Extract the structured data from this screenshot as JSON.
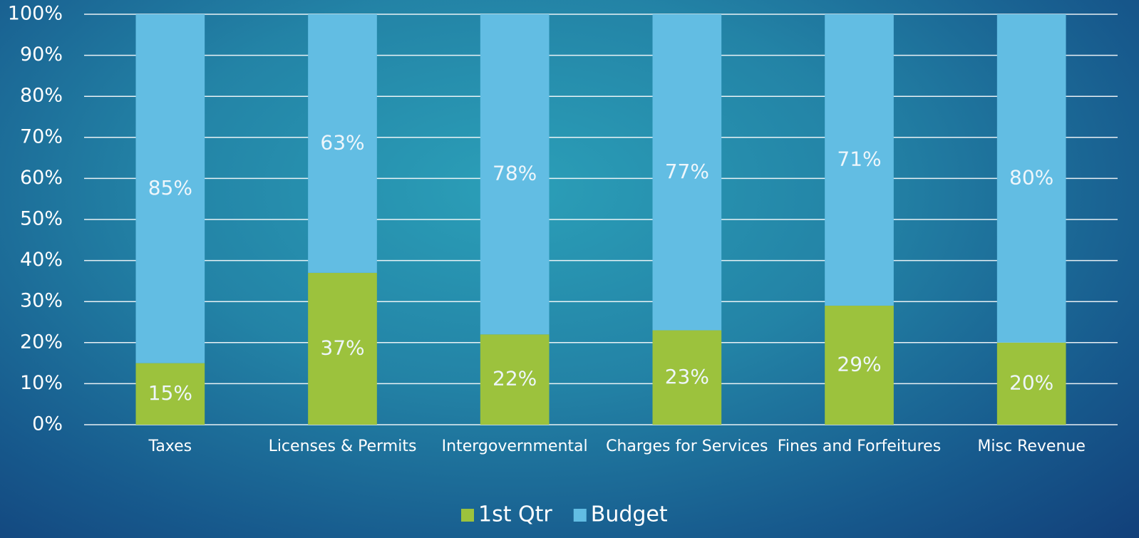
{
  "chart_data": {
    "type": "bar",
    "stacked": true,
    "categories": [
      "Taxes",
      "Licenses & Permits",
      "Intergovernmental",
      "Charges for Services",
      "Fines and Forfeitures",
      "Misc Revenue"
    ],
    "series": [
      {
        "name": "1st Qtr",
        "color": "#9cc23d",
        "values": [
          15,
          37,
          22,
          23,
          29,
          20
        ],
        "value_labels": [
          "15%",
          "37%",
          "22%",
          "23%",
          "29%",
          "20%"
        ]
      },
      {
        "name": "Budget",
        "color": "#62bde3",
        "values": [
          85,
          63,
          78,
          77,
          71,
          80
        ],
        "value_labels": [
          "85%",
          "63%",
          "78%",
          "77%",
          "71%",
          "80%"
        ]
      }
    ],
    "ylim": [
      0,
      100
    ],
    "yticks": [
      {
        "value": 0,
        "label": "0%"
      },
      {
        "value": 10,
        "label": "10%"
      },
      {
        "value": 20,
        "label": "20%"
      },
      {
        "value": 30,
        "label": "30%"
      },
      {
        "value": 40,
        "label": "40%"
      },
      {
        "value": 50,
        "label": "50%"
      },
      {
        "value": 60,
        "label": "60%"
      },
      {
        "value": 70,
        "label": "70%"
      },
      {
        "value": 80,
        "label": "80%"
      },
      {
        "value": 90,
        "label": "90%"
      },
      {
        "value": 100,
        "label": "100%"
      }
    ],
    "grid": true,
    "legend": "bottom"
  }
}
